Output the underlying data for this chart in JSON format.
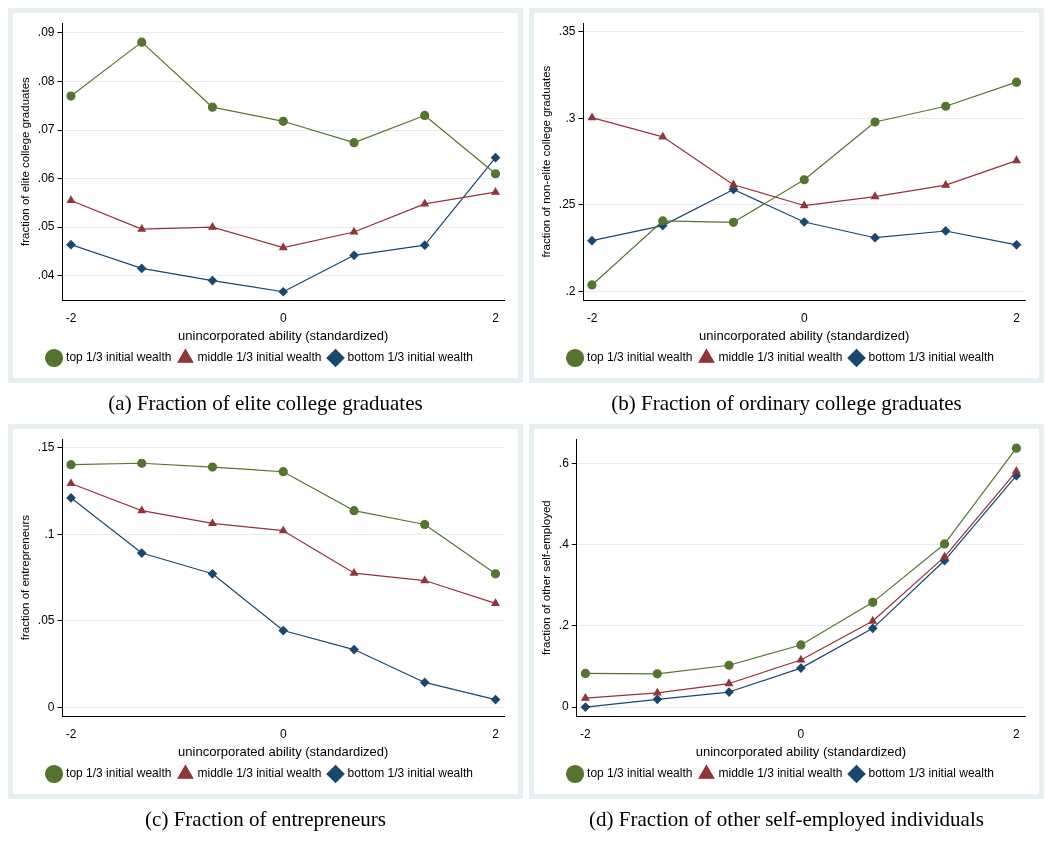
{
  "chart_data": [
    {
      "type": "line",
      "title": "(a) Fraction of elite college graduates",
      "xlabel": "unincorporated ability (standardized)",
      "ylabel": "fraction of elite college graduates",
      "x": [
        -2,
        -1.333,
        -0.667,
        0,
        0.667,
        1.333,
        2
      ],
      "xlim": [
        -2.08,
        2.08
      ],
      "xticks": [
        -2,
        0,
        2
      ],
      "ylim": [
        0.035,
        0.092
      ],
      "yticks": [
        {
          "value": 0.04,
          "label": ".04"
        },
        {
          "value": 0.05,
          "label": ".05"
        },
        {
          "value": 0.06,
          "label": ".06"
        },
        {
          "value": 0.07,
          "label": ".07"
        },
        {
          "value": 0.08,
          "label": ".08"
        },
        {
          "value": 0.09,
          "label": ".09"
        }
      ],
      "grid": "y",
      "legend": "bottom",
      "line_style": "solid",
      "series": [
        {
          "name": "bottom 1/3 initial wealth",
          "color": "#1a476f",
          "marker": "diamond",
          "values": [
            0.0464,
            0.0415,
            0.039,
            0.0367,
            0.0442,
            0.0463,
            0.0643
          ]
        },
        {
          "name": "middle 1/3 initial wealth",
          "color": "#90353b",
          "marker": "triangle",
          "values": [
            0.0555,
            0.0496,
            0.05,
            0.0458,
            0.049,
            0.0548,
            0.0572
          ]
        },
        {
          "name": "top 1/3 initial wealth",
          "color": "#55752f",
          "marker": "circle",
          "values": [
            0.077,
            0.0881,
            0.0747,
            0.0718,
            0.0674,
            0.073,
            0.061
          ]
        }
      ]
    },
    {
      "type": "line",
      "title": "(b) Fraction of ordinary college graduates",
      "xlabel": "unincorporated ability (standardized)",
      "ylabel": "fraction of non-elite college graduates",
      "x": [
        -2,
        -1.333,
        -0.667,
        0,
        0.667,
        1.333,
        2
      ],
      "xlim": [
        -2.08,
        2.08
      ],
      "xticks": [
        -2,
        0,
        2
      ],
      "ylim": [
        0.195,
        0.355
      ],
      "yticks": [
        {
          "value": 0.2,
          "label": ".2"
        },
        {
          "value": 0.25,
          "label": ".25"
        },
        {
          "value": 0.3,
          "label": ".3"
        },
        {
          "value": 0.35,
          "label": ".35"
        }
      ],
      "grid": "y",
      "legend": "bottom",
      "line_style": "solid",
      "series": [
        {
          "name": "bottom 1/3 initial wealth",
          "color": "#1a476f",
          "marker": "diamond",
          "values": [
            0.2293,
            0.238,
            0.2589,
            0.2401,
            0.231,
            0.2349,
            0.2269
          ]
        },
        {
          "name": "middle 1/3 initial wealth",
          "color": "#90353b",
          "marker": "triangle",
          "values": [
            0.3004,
            0.2893,
            0.2616,
            0.2496,
            0.2548,
            0.2614,
            0.2756
          ]
        },
        {
          "name": "top 1/3 initial wealth",
          "color": "#55752f",
          "marker": "circle",
          "values": [
            0.2037,
            0.2407,
            0.2399,
            0.2645,
            0.2979,
            0.307,
            0.3209
          ]
        }
      ]
    },
    {
      "type": "line",
      "title": "(c) Fraction of entrepreneurs",
      "xlabel": "unincorporated ability (standardized)",
      "ylabel": "fraction of entrepreneurs",
      "x": [
        -2,
        -1.333,
        -0.667,
        0,
        0.667,
        1.333,
        2
      ],
      "xlim": [
        -2.08,
        2.08
      ],
      "xticks": [
        -2,
        0,
        2
      ],
      "ylim": [
        -0.005,
        0.155
      ],
      "yticks": [
        0,
        {
          "value": 0.05,
          "label": ".05"
        },
        {
          "value": 0.1,
          "label": ".1"
        },
        {
          "value": 0.15,
          "label": ".15"
        }
      ],
      "grid": "y",
      "legend": "bottom",
      "line_style": "solid",
      "series": [
        {
          "name": "bottom 1/3 initial wealth",
          "color": "#1a476f",
          "marker": "diamond",
          "values": [
            0.1211,
            0.0892,
            0.0772,
            0.0444,
            0.0334,
            0.0144,
            0.0045
          ]
        },
        {
          "name": "middle 1/3 initial wealth",
          "color": "#90353b",
          "marker": "triangle",
          "values": [
            0.1294,
            0.1137,
            0.1063,
            0.1021,
            0.0776,
            0.0733,
            0.0601
          ]
        },
        {
          "name": "top 1/3 initial wealth",
          "color": "#55752f",
          "marker": "circle",
          "values": [
            0.1403,
            0.1411,
            0.1389,
            0.1362,
            0.1137,
            0.1057,
            0.0772
          ]
        }
      ]
    },
    {
      "type": "line",
      "title": "(d) Fraction of other self-employed individuals",
      "xlabel": "unincorporated ability (standardized)",
      "ylabel": "fraction of other self-employed",
      "x": [
        -2,
        -1.333,
        -0.667,
        0,
        0.667,
        1.333,
        2
      ],
      "xlim": [
        -2.08,
        2.08
      ],
      "xticks": [
        -2,
        0,
        2
      ],
      "ylim": [
        -0.022,
        0.66
      ],
      "yticks": [
        0,
        {
          "value": 0.2,
          "label": ".2"
        },
        {
          "value": 0.4,
          "label": ".4"
        },
        {
          "value": 0.6,
          "label": ".6"
        }
      ],
      "grid": "y",
      "legend": "bottom",
      "line_style": "solid",
      "series": [
        {
          "name": "bottom 1/3 initial wealth",
          "color": "#1a476f",
          "marker": "diamond",
          "values": [
            0,
            0.019,
            0.037,
            0.096,
            0.194,
            0.361,
            0.57
          ]
        },
        {
          "name": "middle 1/3 initial wealth",
          "color": "#90353b",
          "marker": "triangle",
          "values": [
            0.022,
            0.035,
            0.058,
            0.116,
            0.212,
            0.37,
            0.581
          ]
        },
        {
          "name": "top 1/3 initial wealth",
          "color": "#55752f",
          "marker": "circle",
          "values": [
            0.083,
            0.082,
            0.103,
            0.153,
            0.258,
            0.402,
            0.638
          ]
        }
      ]
    }
  ]
}
